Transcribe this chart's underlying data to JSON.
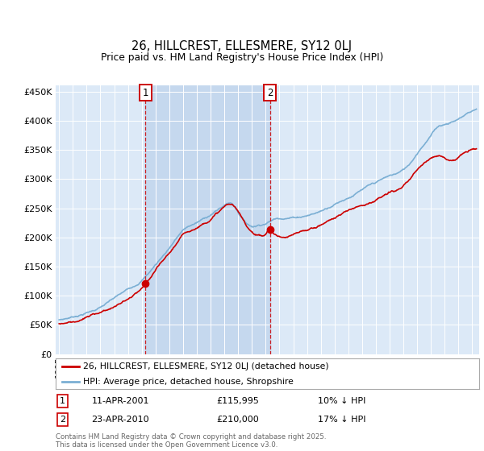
{
  "title": "26, HILLCREST, ELLESMERE, SY12 0LJ",
  "subtitle": "Price paid vs. HM Land Registry's House Price Index (HPI)",
  "ylim": [
    0,
    460000
  ],
  "yticks": [
    0,
    50000,
    100000,
    150000,
    200000,
    250000,
    300000,
    350000,
    400000,
    450000
  ],
  "sale1_x": 2001.27,
  "sale1_price": 115995,
  "sale1_label": "1",
  "sale1_date": "11-APR-2001",
  "sale1_hpi_diff": "10% ↓ HPI",
  "sale2_x": 2010.31,
  "sale2_price": 210000,
  "sale2_label": "2",
  "sale2_date": "23-APR-2010",
  "sale2_hpi_diff": "17% ↓ HPI",
  "legend_label_red": "26, HILLCREST, ELLESMERE, SY12 0LJ (detached house)",
  "legend_label_blue": "HPI: Average price, detached house, Shropshire",
  "footer": "Contains HM Land Registry data © Crown copyright and database right 2025.\nThis data is licensed under the Open Government Licence v3.0.",
  "hpi_color": "#7bafd4",
  "hpi_fill_color": "#dce9f7",
  "price_color": "#cc0000",
  "bg_color": "#dce9f7",
  "grid_color": "#ffffff",
  "shade_color": "#c5d8ee",
  "xlim_start": 1994.75,
  "xlim_end": 2025.5,
  "hpi_base_points": [
    [
      1995.0,
      58000
    ],
    [
      1996.0,
      64000
    ],
    [
      1997.0,
      72000
    ],
    [
      1998.0,
      82000
    ],
    [
      1999.0,
      96000
    ],
    [
      2000.0,
      110000
    ],
    [
      2001.0,
      128000
    ],
    [
      2002.0,
      155000
    ],
    [
      2003.0,
      185000
    ],
    [
      2004.0,
      215000
    ],
    [
      2005.0,
      228000
    ],
    [
      2006.0,
      242000
    ],
    [
      2007.0,
      258000
    ],
    [
      2007.5,
      262000
    ],
    [
      2008.0,
      248000
    ],
    [
      2008.5,
      232000
    ],
    [
      2009.0,
      225000
    ],
    [
      2009.5,
      228000
    ],
    [
      2010.0,
      232000
    ],
    [
      2010.5,
      238000
    ],
    [
      2011.0,
      242000
    ],
    [
      2012.0,
      245000
    ],
    [
      2013.0,
      250000
    ],
    [
      2014.0,
      258000
    ],
    [
      2015.0,
      272000
    ],
    [
      2016.0,
      285000
    ],
    [
      2017.0,
      298000
    ],
    [
      2018.0,
      308000
    ],
    [
      2019.0,
      318000
    ],
    [
      2020.0,
      328000
    ],
    [
      2020.5,
      340000
    ],
    [
      2021.0,
      358000
    ],
    [
      2021.5,
      375000
    ],
    [
      2022.0,
      390000
    ],
    [
      2022.5,
      405000
    ],
    [
      2023.0,
      410000
    ],
    [
      2023.5,
      415000
    ],
    [
      2024.0,
      420000
    ],
    [
      2024.5,
      428000
    ],
    [
      2025.0,
      435000
    ],
    [
      2025.3,
      438000
    ]
  ],
  "price_base_points": [
    [
      1995.0,
      52000
    ],
    [
      1996.0,
      57000
    ],
    [
      1997.0,
      64000
    ],
    [
      1998.0,
      73000
    ],
    [
      1999.0,
      83000
    ],
    [
      2000.0,
      95000
    ],
    [
      2001.0,
      110000
    ],
    [
      2001.27,
      115995
    ],
    [
      2002.0,
      138000
    ],
    [
      2003.0,
      165000
    ],
    [
      2004.0,
      195000
    ],
    [
      2005.0,
      210000
    ],
    [
      2006.0,
      228000
    ],
    [
      2007.0,
      248000
    ],
    [
      2007.5,
      252000
    ],
    [
      2008.0,
      238000
    ],
    [
      2008.5,
      218000
    ],
    [
      2009.0,
      205000
    ],
    [
      2009.5,
      200000
    ],
    [
      2010.0,
      202000
    ],
    [
      2010.31,
      210000
    ],
    [
      2010.5,
      205000
    ],
    [
      2011.0,
      198000
    ],
    [
      2011.5,
      195000
    ],
    [
      2012.0,
      198000
    ],
    [
      2013.0,
      205000
    ],
    [
      2014.0,
      215000
    ],
    [
      2015.0,
      228000
    ],
    [
      2016.0,
      240000
    ],
    [
      2017.0,
      252000
    ],
    [
      2018.0,
      262000
    ],
    [
      2019.0,
      272000
    ],
    [
      2020.0,
      282000
    ],
    [
      2020.5,
      292000
    ],
    [
      2021.0,
      308000
    ],
    [
      2021.5,
      318000
    ],
    [
      2022.0,
      328000
    ],
    [
      2022.5,
      335000
    ],
    [
      2023.0,
      332000
    ],
    [
      2023.5,
      328000
    ],
    [
      2024.0,
      335000
    ],
    [
      2024.5,
      342000
    ],
    [
      2025.0,
      346000
    ],
    [
      2025.3,
      348000
    ]
  ]
}
